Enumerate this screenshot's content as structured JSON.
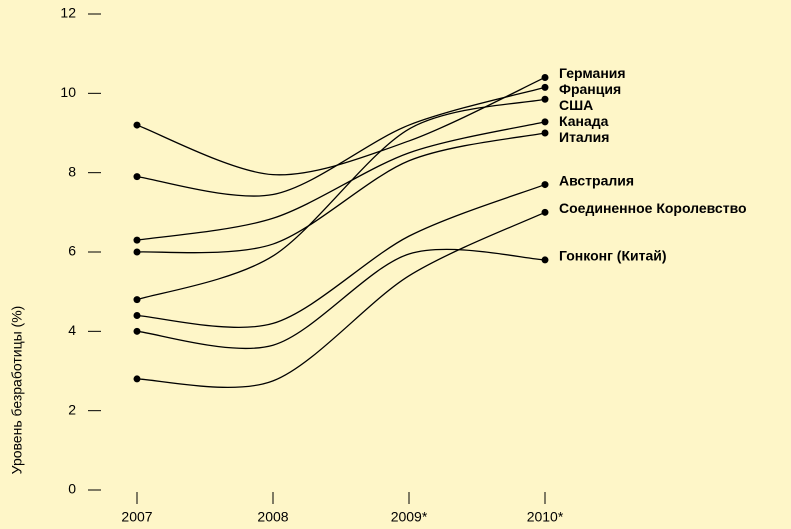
{
  "chart_data": {
    "type": "line",
    "ylabel": "Уровень безработицы (%)",
    "categories": [
      "2007",
      "2008",
      "2009*",
      "2010*"
    ],
    "ylim": [
      0,
      12
    ],
    "yticks": [
      0,
      2,
      4,
      6,
      8,
      10,
      12
    ],
    "series": [
      {
        "name": "Германия",
        "color": "#000000",
        "values": [
          9.2,
          7.95,
          8.8,
          10.4
        ]
      },
      {
        "name": "Франция",
        "color": "#000000",
        "values": [
          7.9,
          7.45,
          9.2,
          10.15
        ]
      },
      {
        "name": "США",
        "color": "#000000",
        "values": [
          4.8,
          5.9,
          9.1,
          9.85
        ]
      },
      {
        "name": "Канада",
        "color": "#000000",
        "values": [
          6.3,
          6.85,
          8.5,
          9.28
        ]
      },
      {
        "name": "Италия",
        "color": "#000000",
        "values": [
          6.0,
          6.2,
          8.3,
          9.0
        ]
      },
      {
        "name": "Австралия",
        "color": "#000000",
        "values": [
          4.4,
          4.2,
          6.4,
          7.7
        ]
      },
      {
        "name": "Соединенное Королевство",
        "color": "#000000",
        "values": [
          2.8,
          2.75,
          5.4,
          7.0
        ]
      },
      {
        "name": "Гонконг (Китай)",
        "color": "#000000",
        "values": [
          4.0,
          3.65,
          5.95,
          5.8
        ]
      }
    ]
  }
}
